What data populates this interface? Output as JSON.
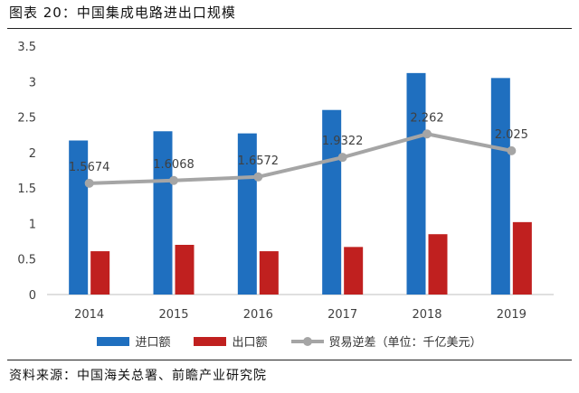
{
  "figure_title": "图表 20：中国集成电路进出口规模",
  "source": "资料来源：中国海关总署、前瞻产业研究院",
  "chart_data": {
    "type": "bar",
    "categories": [
      "2014",
      "2015",
      "2016",
      "2017",
      "2018",
      "2019"
    ],
    "series": [
      {
        "name": "进口额",
        "type": "bar",
        "color": "#1f6fbf",
        "values": [
          2.17,
          2.3,
          2.27,
          2.6,
          3.12,
          3.05
        ]
      },
      {
        "name": "出口额",
        "type": "bar",
        "color": "#c0201f",
        "values": [
          0.61,
          0.7,
          0.61,
          0.67,
          0.85,
          1.02
        ]
      },
      {
        "name": "贸易逆差（单位：千亿美元）",
        "type": "line",
        "color": "#a5a5a5",
        "values": [
          1.5674,
          1.6068,
          1.6572,
          1.9322,
          2.262,
          2.025
        ]
      }
    ],
    "data_labels": [
      "1.5674",
      "1.6068",
      "1.6572",
      "1.9322",
      "2.262",
      "2.025"
    ],
    "y_ticks": [
      "0",
      "0.5",
      "1",
      "1.5",
      "2",
      "2.5",
      "3",
      "3.5"
    ],
    "ylim": [
      0,
      3.5
    ],
    "grid": false,
    "legend_position": "bottom"
  }
}
